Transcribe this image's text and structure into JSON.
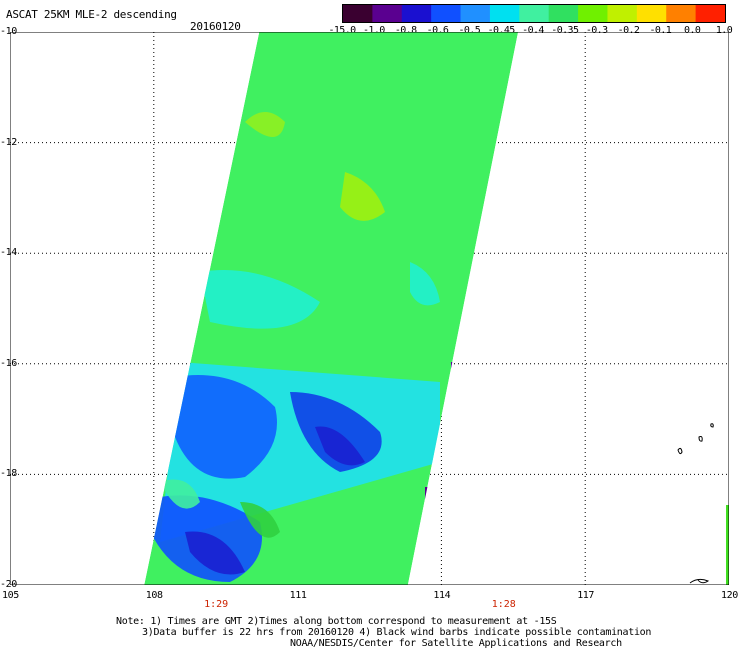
{
  "header": {
    "title": "ASCAT 25KM MLE-2 descending",
    "date": "20160120"
  },
  "colorbar": {
    "labels": [
      "-15.0",
      "-1.0",
      "-0.8",
      "-0.6",
      "-0.5",
      "-0.45",
      "-0.4",
      "-0.35",
      "-0.3",
      "-0.2",
      "-0.1",
      "0.0",
      "1.0"
    ],
    "colors": [
      "#3a0030",
      "#5a0090",
      "#1a10d0",
      "#1050ff",
      "#2090ff",
      "#00e0f0",
      "#40f0a0",
      "#30e060",
      "#70f000",
      "#c0f000",
      "#ffe000",
      "#ff8000",
      "#ff2000"
    ]
  },
  "axes": {
    "lat_labels": [
      "-10",
      "-12",
      "-14",
      "-16",
      "-18",
      "-20"
    ],
    "lon_labels": [
      "105",
      "108",
      "111",
      "114",
      "117",
      "120"
    ],
    "lat_range": [
      -20,
      -10
    ],
    "lon_range": [
      105,
      120
    ]
  },
  "time_labels": [
    {
      "text": "1:29",
      "lon": 109.3
    },
    {
      "text": "1:28",
      "lon": 115.3
    }
  ],
  "notes": [
    "Note: 1) Times are GMT 2)Times along bottom correspond to measurement at -15S",
    "3)Data buffer is 22 hrs from 20160120 4) Black wind barbs indicate possible contamination",
    "NOAA/NESDIS/Center for Satellite Applications and Research"
  ],
  "swath": {
    "corners_latlon": [
      [
        -10,
        110.2
      ],
      [
        -10,
        115.6
      ],
      [
        -20,
        113.3
      ],
      [
        -20,
        107.8
      ]
    ],
    "dominant_color": "#40f060"
  }
}
